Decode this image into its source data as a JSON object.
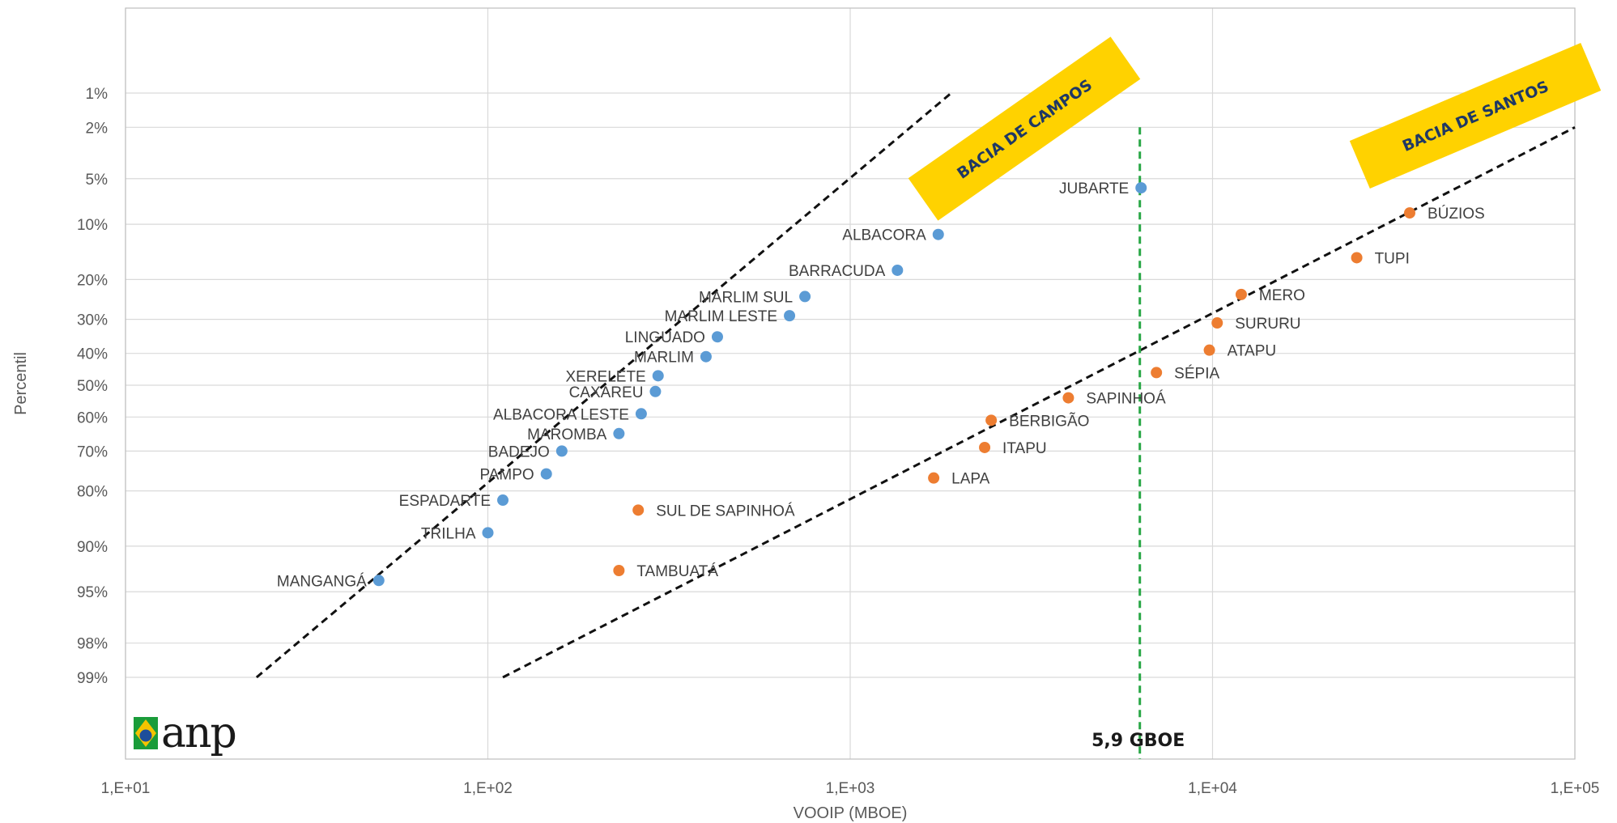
{
  "chart_data": {
    "type": "scatter",
    "xlabel": "VOOIP (MBOE)",
    "ylabel": "Percentil",
    "x_scale": "log",
    "y_scale": "probability",
    "xlim": [
      10,
      100000
    ],
    "x_ticks": [
      10,
      100,
      1000,
      10000,
      100000
    ],
    "x_tick_labels": [
      "1,E+01",
      "1,E+02",
      "1,E+03",
      "1,E+04",
      "1,E+05"
    ],
    "y_ticks": [
      1,
      2,
      5,
      10,
      20,
      30,
      40,
      50,
      60,
      70,
      80,
      90,
      95,
      98,
      99
    ],
    "y_tick_labels": [
      "1%",
      "2%",
      "5%",
      "10%",
      "20%",
      "30%",
      "40%",
      "50%",
      "60%",
      "70%",
      "80%",
      "90%",
      "95%",
      "98%",
      "99%"
    ],
    "grid": true,
    "series": [
      {
        "color": "#5b9bd5",
        "points": [
          {
            "label": "JUBARTE",
            "x": 6350,
            "y": 5.8
          },
          {
            "label": "ALBACORA",
            "x": 1750,
            "y": 11.5
          },
          {
            "label": "BARRACUDA",
            "x": 1350,
            "y": 18
          },
          {
            "label": "MARLIM SUL",
            "x": 750,
            "y": 24
          },
          {
            "label": "MARLIM LESTE",
            "x": 680,
            "y": 29
          },
          {
            "label": "LINGUADO",
            "x": 430,
            "y": 35
          },
          {
            "label": "MARLIM",
            "x": 400,
            "y": 41
          },
          {
            "label": "XERELETE",
            "x": 295,
            "y": 47
          },
          {
            "label": "CAXAREU",
            "x": 290,
            "y": 52
          },
          {
            "label": "ALBACORA LESTE",
            "x": 265,
            "y": 59
          },
          {
            "label": "MAROMBA",
            "x": 230,
            "y": 65
          },
          {
            "label": "BADEJO",
            "x": 160,
            "y": 70
          },
          {
            "label": "PAMPO",
            "x": 145,
            "y": 76
          },
          {
            "label": "ESPADARTE",
            "x": 110,
            "y": 82
          },
          {
            "label": "TRILHA",
            "x": 100,
            "y": 88
          },
          {
            "label": "MANGANGÁ",
            "x": 50,
            "y": 94
          }
        ]
      },
      {
        "color": "#ed7d31",
        "points": [
          {
            "label": "BÚZIOS",
            "x": 35000,
            "y": 8.5
          },
          {
            "label": "TUPI",
            "x": 25000,
            "y": 15.5
          },
          {
            "label": "MERO",
            "x": 12000,
            "y": 23.5
          },
          {
            "label": "SURURU",
            "x": 10300,
            "y": 31
          },
          {
            "label": "ATAPU",
            "x": 9800,
            "y": 39
          },
          {
            "label": "SÉPIA",
            "x": 7000,
            "y": 46
          },
          {
            "label": "SAPINHOÁ",
            "x": 4000,
            "y": 54
          },
          {
            "label": "BERBIGÃO",
            "x": 2450,
            "y": 61
          },
          {
            "label": "ITAPU",
            "x": 2350,
            "y": 69
          },
          {
            "label": "LAPA",
            "x": 1700,
            "y": 77
          },
          {
            "label": "SUL DE SAPINHOÁ",
            "x": 260,
            "y": 84
          },
          {
            "label": "TAMBUATÁ",
            "x": 230,
            "y": 93
          }
        ]
      }
    ],
    "trend_lines": [
      {
        "name": "BACIA DE CAMPOS",
        "from": {
          "x": 23,
          "y": 99
        },
        "to": {
          "x": 1900,
          "y": 1
        }
      },
      {
        "name": "BACIA DE SANTOS",
        "from": {
          "x": 110,
          "y": 99
        },
        "to": {
          "x": 100000,
          "y": 2
        }
      }
    ],
    "reference_line": {
      "x": 6300,
      "y_from": 2,
      "y_to": 99.9,
      "label": "5,9 GBOE",
      "color": "#28a745"
    },
    "banners": [
      {
        "text": "BACIA DE CAMPOS",
        "color": "#ffd200"
      },
      {
        "text": "BACIA DE SANTOS",
        "color": "#ffd200"
      }
    ]
  },
  "logo": {
    "text": "anp"
  }
}
